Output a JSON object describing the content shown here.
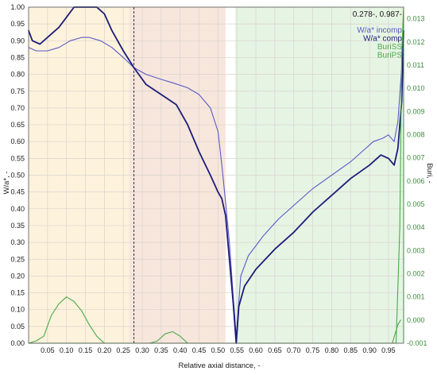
{
  "chart_data": {
    "type": "line",
    "title": "",
    "xlabel": "Relative axial distance, -",
    "ylabel": "W/a*, -",
    "y2label": "Buri, -",
    "readout": "0.278-, 0.987-",
    "xlim": [
      0.0,
      0.99
    ],
    "ylim": [
      0.0,
      1.0
    ],
    "y2lim": [
      -0.001,
      0.0135
    ],
    "x_ticks": [
      "0.05",
      "0.10",
      "0.15",
      "0.20",
      "0.25",
      "0.30",
      "0.35",
      "0.40",
      "0.45",
      "0.50",
      "0.55",
      "0.60",
      "0.65",
      "0.70",
      "0.75",
      "0.80",
      "0.85",
      "0.90",
      "0.95"
    ],
    "y_ticks": [
      "0.00",
      "0.05",
      "0.10",
      "0.15",
      "0.20",
      "0.25",
      "0.30",
      "0.35",
      "0.40",
      "0.45",
      "0.50",
      "0.55",
      "0.60",
      "0.65",
      "0.70",
      "0.75",
      "0.80",
      "0.85",
      "0.90",
      "0.95",
      "1.00"
    ],
    "y2_ticks": [
      "-0.001",
      "0.000",
      "0.001",
      "0.002",
      "0.003",
      "0.004",
      "0.005",
      "0.006",
      "0.007",
      "0.008",
      "0.009",
      "0.010",
      "0.011",
      "0.012",
      "0.013"
    ],
    "cursor_x": 0.278,
    "grid": true,
    "regions": [
      {
        "from": 0.0,
        "to": 0.265,
        "color": "#fdf2dc"
      },
      {
        "from": 0.265,
        "to": 0.52,
        "color": "#f7e6dc"
      },
      {
        "from": 0.545,
        "to": 0.99,
        "color": "#e6f4e4"
      }
    ],
    "legend": [
      {
        "label": "W/a* incomp",
        "color": "#5a5ac8"
      },
      {
        "label": "W/a* comp",
        "color": "#1c1c78"
      },
      {
        "label": "BuriSS",
        "color": "#4ca84c"
      },
      {
        "label": "BuriPS",
        "color": "#4ca84c"
      }
    ],
    "series": [
      {
        "name": "W/a* incomp",
        "axis": "left",
        "color": "#5a5ac8",
        "width": 1.1,
        "x": [
          0.0,
          0.02,
          0.05,
          0.08,
          0.11,
          0.14,
          0.16,
          0.19,
          0.22,
          0.25,
          0.278,
          0.31,
          0.35,
          0.38,
          0.42,
          0.45,
          0.48,
          0.5,
          0.51,
          0.52,
          0.53,
          0.54,
          0.548,
          0.56,
          0.58,
          0.62,
          0.66,
          0.7,
          0.75,
          0.8,
          0.85,
          0.88,
          0.91,
          0.935,
          0.95,
          0.965,
          0.975,
          0.985,
          0.99
        ],
        "y": [
          0.88,
          0.87,
          0.87,
          0.88,
          0.9,
          0.91,
          0.91,
          0.9,
          0.88,
          0.85,
          0.82,
          0.8,
          0.785,
          0.775,
          0.76,
          0.74,
          0.7,
          0.63,
          0.53,
          0.42,
          0.3,
          0.14,
          0.02,
          0.2,
          0.26,
          0.32,
          0.37,
          0.41,
          0.46,
          0.5,
          0.54,
          0.57,
          0.6,
          0.61,
          0.62,
          0.6,
          0.66,
          0.82,
          0.93
        ]
      },
      {
        "name": "W/a* comp",
        "axis": "left",
        "color": "#1c1c78",
        "width": 1.8,
        "x": [
          0.0,
          0.01,
          0.03,
          0.05,
          0.08,
          0.1,
          0.12,
          0.15,
          0.18,
          0.2,
          0.22,
          0.25,
          0.278,
          0.31,
          0.35,
          0.39,
          0.42,
          0.45,
          0.48,
          0.5,
          0.51,
          0.52,
          0.53,
          0.54,
          0.548,
          0.555,
          0.57,
          0.6,
          0.65,
          0.7,
          0.75,
          0.8,
          0.85,
          0.9,
          0.93,
          0.95,
          0.965,
          0.975,
          0.985,
          0.99
        ],
        "y": [
          0.93,
          0.9,
          0.89,
          0.91,
          0.94,
          0.97,
          1.0,
          1.0,
          1.0,
          0.98,
          0.93,
          0.87,
          0.82,
          0.77,
          0.74,
          0.71,
          0.65,
          0.57,
          0.5,
          0.45,
          0.43,
          0.38,
          0.25,
          0.12,
          0.0,
          0.11,
          0.17,
          0.22,
          0.28,
          0.33,
          0.39,
          0.44,
          0.49,
          0.53,
          0.56,
          0.55,
          0.53,
          0.58,
          0.72,
          0.93
        ]
      },
      {
        "name": "BuriSS",
        "axis": "right",
        "color": "#4ca84c",
        "width": 1.1,
        "x": [
          0.0,
          0.02,
          0.04,
          0.06,
          0.08,
          0.1,
          0.12,
          0.14,
          0.16,
          0.18,
          0.2,
          0.22,
          0.24,
          0.26,
          0.3,
          0.32,
          0.34,
          0.36,
          0.38,
          0.4,
          0.42,
          0.44,
          0.46,
          0.5,
          0.55,
          0.6,
          0.7,
          0.8,
          0.9,
          0.95,
          0.97,
          0.98,
          0.985,
          0.99
        ],
        "y": [
          -0.001,
          -0.0009,
          -0.0007,
          0.0002,
          0.0007,
          0.001,
          0.0008,
          0.0004,
          -0.0002,
          -0.0007,
          -0.001,
          -0.001,
          -0.001,
          -0.001,
          -0.001,
          -0.001,
          -0.0009,
          -0.0006,
          -0.0005,
          -0.0007,
          -0.001,
          -0.001,
          -0.001,
          -0.001,
          -0.001,
          -0.001,
          -0.001,
          -0.001,
          -0.001,
          -0.001,
          -0.001,
          0.004,
          0.0115,
          0.0135
        ]
      },
      {
        "name": "BuriPS",
        "axis": "right",
        "color": "#4ca84c",
        "width": 1.1,
        "x": [
          0.0,
          0.3,
          0.4,
          0.5,
          0.7,
          0.9,
          0.96,
          0.975,
          0.982
        ],
        "y": [
          -0.001,
          -0.001,
          -0.001,
          -0.001,
          -0.001,
          -0.001,
          -0.001,
          -0.0002,
          0.0
        ]
      }
    ]
  }
}
